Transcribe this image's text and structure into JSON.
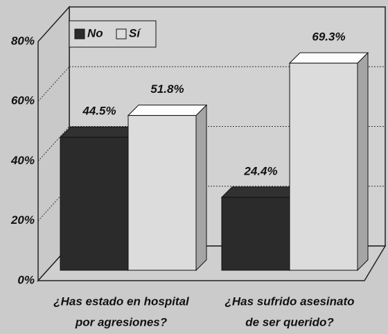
{
  "chart_data": {
    "type": "bar3d",
    "categories": [
      [
        "¿Has estado en hospital",
        "por agresiones?"
      ],
      [
        "¿Has sufrido asesinato",
        "de ser querido?"
      ]
    ],
    "series": [
      {
        "name": "No",
        "color": "#2b2b2b",
        "values": [
          44.5,
          24.4
        ],
        "value_labels": [
          "44.5%",
          "24.4%"
        ]
      },
      {
        "name": "Sí",
        "color": "#dcdcdc",
        "values": [
          51.8,
          69.3
        ],
        "value_labels": [
          "51.8%",
          "69.3%"
        ]
      }
    ],
    "ylim": [
      0,
      80
    ],
    "yticks": [
      {
        "value": 0,
        "label": "0%"
      },
      {
        "value": 20,
        "label": "20%"
      },
      {
        "value": 40,
        "label": "40%"
      },
      {
        "value": 60,
        "label": "60%"
      },
      {
        "value": 80,
        "label": "80%"
      }
    ],
    "grid": true,
    "legend": "top-left"
  }
}
